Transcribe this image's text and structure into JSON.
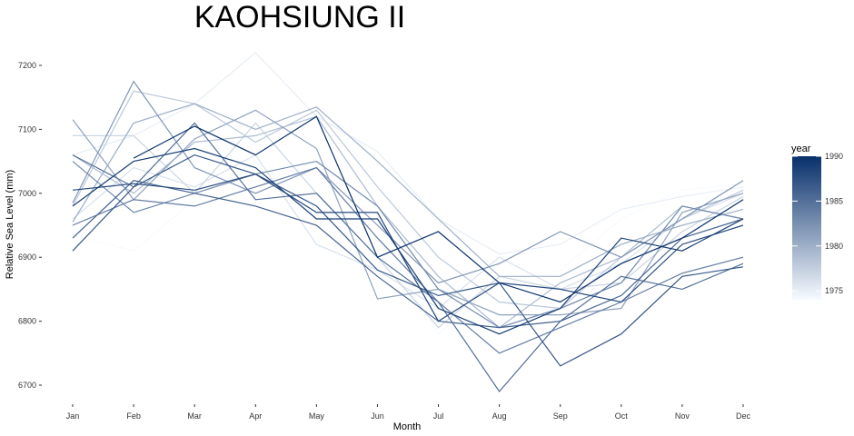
{
  "chart_data": {
    "type": "line",
    "title": "KAOHSIUNG II",
    "xlabel": "Month",
    "ylabel": "Relative Sea Level (mm)",
    "categories": [
      "Jan",
      "Feb",
      "Mar",
      "Apr",
      "May",
      "Jun",
      "Jul",
      "Aug",
      "Sep",
      "Oct",
      "Nov",
      "Dec"
    ],
    "ylim": [
      6680,
      7225
    ],
    "yticks": [
      6700,
      6800,
      6900,
      7000,
      7100,
      7200
    ],
    "grid": false,
    "legend": {
      "title": "year",
      "placement": "right",
      "range": [
        1974,
        1990
      ],
      "ticks": [
        1975,
        1980,
        1985,
        1990
      ],
      "color_low": "#f7fbff",
      "color_high": "#08306b"
    },
    "series": [
      {
        "year": 1974,
        "values": [
          6935,
          6910,
          6990,
          7050,
          6980,
          6930,
          6780,
          6860,
          6880,
          6960,
          7005,
          7015
        ]
      },
      {
        "year": 1975,
        "values": [
          7060,
          7090,
          7140,
          7220,
          7120,
          7065,
          6960,
          6905,
          6920,
          6975,
          6995,
          7010
        ]
      },
      {
        "year": 1976,
        "values": [
          6960,
          7040,
          7010,
          7060,
          6920,
          6880,
          6820,
          6900,
          6850,
          6890,
          6960,
          7000
        ]
      },
      {
        "year": 1977,
        "values": [
          7090,
          7090,
          7000,
          7110,
          7000,
          6900,
          6790,
          6870,
          6850,
          6860,
          6940,
          6995
        ]
      },
      {
        "year": 1978,
        "values": [
          6980,
          7160,
          7140,
          7080,
          7130,
          7010,
          6900,
          6830,
          6820,
          6900,
          6960,
          7005
        ]
      },
      {
        "year": 1979,
        "values": [
          7060,
          7000,
          7080,
          7090,
          7120,
          6980,
          6870,
          6790,
          6860,
          6900,
          6980,
          6960
        ]
      },
      {
        "year": 1980,
        "values": [
          6955,
          7110,
          7140,
          7100,
          7135,
          7050,
          6960,
          6870,
          6870,
          6920,
          6950,
          6975
        ]
      },
      {
        "year": 1981,
        "values": [
          7115,
          6990,
          7085,
          7130,
          7070,
          6835,
          6850,
          6810,
          6810,
          6820,
          6970,
          7000
        ]
      },
      {
        "year": 1982,
        "values": [
          6985,
          7175,
          7040,
          7000,
          7040,
          6950,
          6860,
          6890,
          6940,
          6900,
          6960,
          7020
        ]
      },
      {
        "year": 1983,
        "values": [
          7050,
          6970,
          7000,
          7030,
          7050,
          6980,
          6850,
          6790,
          6820,
          6860,
          6980,
          6960
        ]
      },
      {
        "year": 1984,
        "values": [
          6950,
          6990,
          6980,
          7010,
          7040,
          6930,
          6830,
          6750,
          6790,
          6830,
          6875,
          6900
        ]
      },
      {
        "year": 1985,
        "values": [
          7060,
          7010,
          7110,
          6990,
          7000,
          6900,
          6830,
          6690,
          6800,
          6870,
          6850,
          6890
        ]
      },
      {
        "year": 1986,
        "values": [
          6930,
          7020,
          7000,
          6980,
          6950,
          6870,
          6800,
          6790,
          6800,
          6840,
          6930,
          6960
        ]
      },
      {
        "year": 1987,
        "values": [
          6910,
          7010,
          7060,
          7030,
          6980,
          6880,
          6840,
          6860,
          6730,
          6780,
          6870,
          6885
        ]
      },
      {
        "year": 1988,
        "values": [
          7005,
          7015,
          7005,
          7030,
          6970,
          6970,
          6800,
          6860,
          6850,
          6830,
          6920,
          6950
        ]
      },
      {
        "year": 1989,
        "values": [
          6980,
          7050,
          7070,
          7040,
          6960,
          6960,
          6820,
          6780,
          6820,
          6930,
          6910,
          6960
        ]
      },
      {
        "year": 1990,
        "values": [
          null,
          7055,
          7105,
          7060,
          7120,
          6900,
          6940,
          6860,
          6830,
          6890,
          6930,
          6990
        ]
      }
    ]
  }
}
